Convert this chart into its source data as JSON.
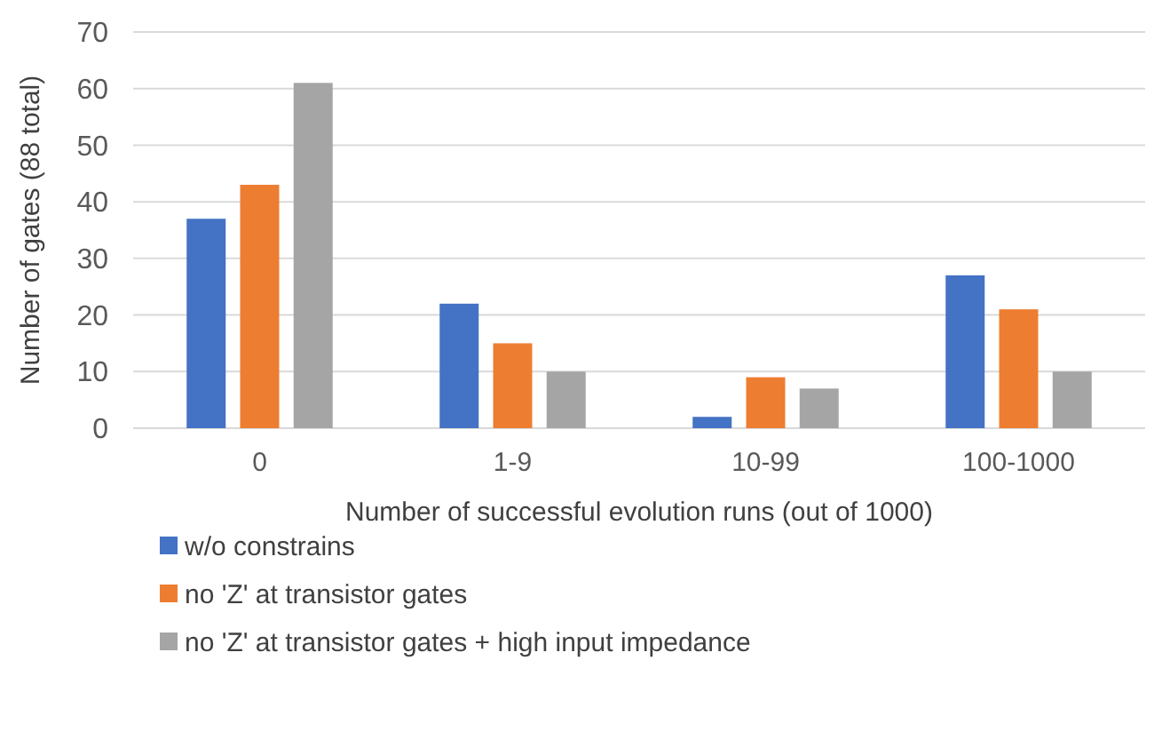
{
  "chart_data": {
    "type": "bar",
    "xlabel": "Number of successful evolution runs (out of 1000)",
    "ylabel": "Number of gates (88 total)",
    "categories": [
      "0",
      "1-9",
      "10-99",
      "100-1000"
    ],
    "series": [
      {
        "name": "w/o constrains",
        "color": "#4472c4",
        "values": [
          37,
          22,
          2,
          27
        ]
      },
      {
        "name": "no 'Z' at transistor gates",
        "color": "#ed7d31",
        "values": [
          43,
          15,
          9,
          21
        ]
      },
      {
        "name": "no 'Z' at transistor gates + high input impedance",
        "color": "#a5a5a5",
        "values": [
          61,
          10,
          7,
          10
        ]
      }
    ],
    "ylim": [
      0,
      70
    ],
    "yticks": [
      0,
      10,
      20,
      30,
      40,
      50,
      60,
      70
    ],
    "grid": "y",
    "legend": "bottom"
  }
}
